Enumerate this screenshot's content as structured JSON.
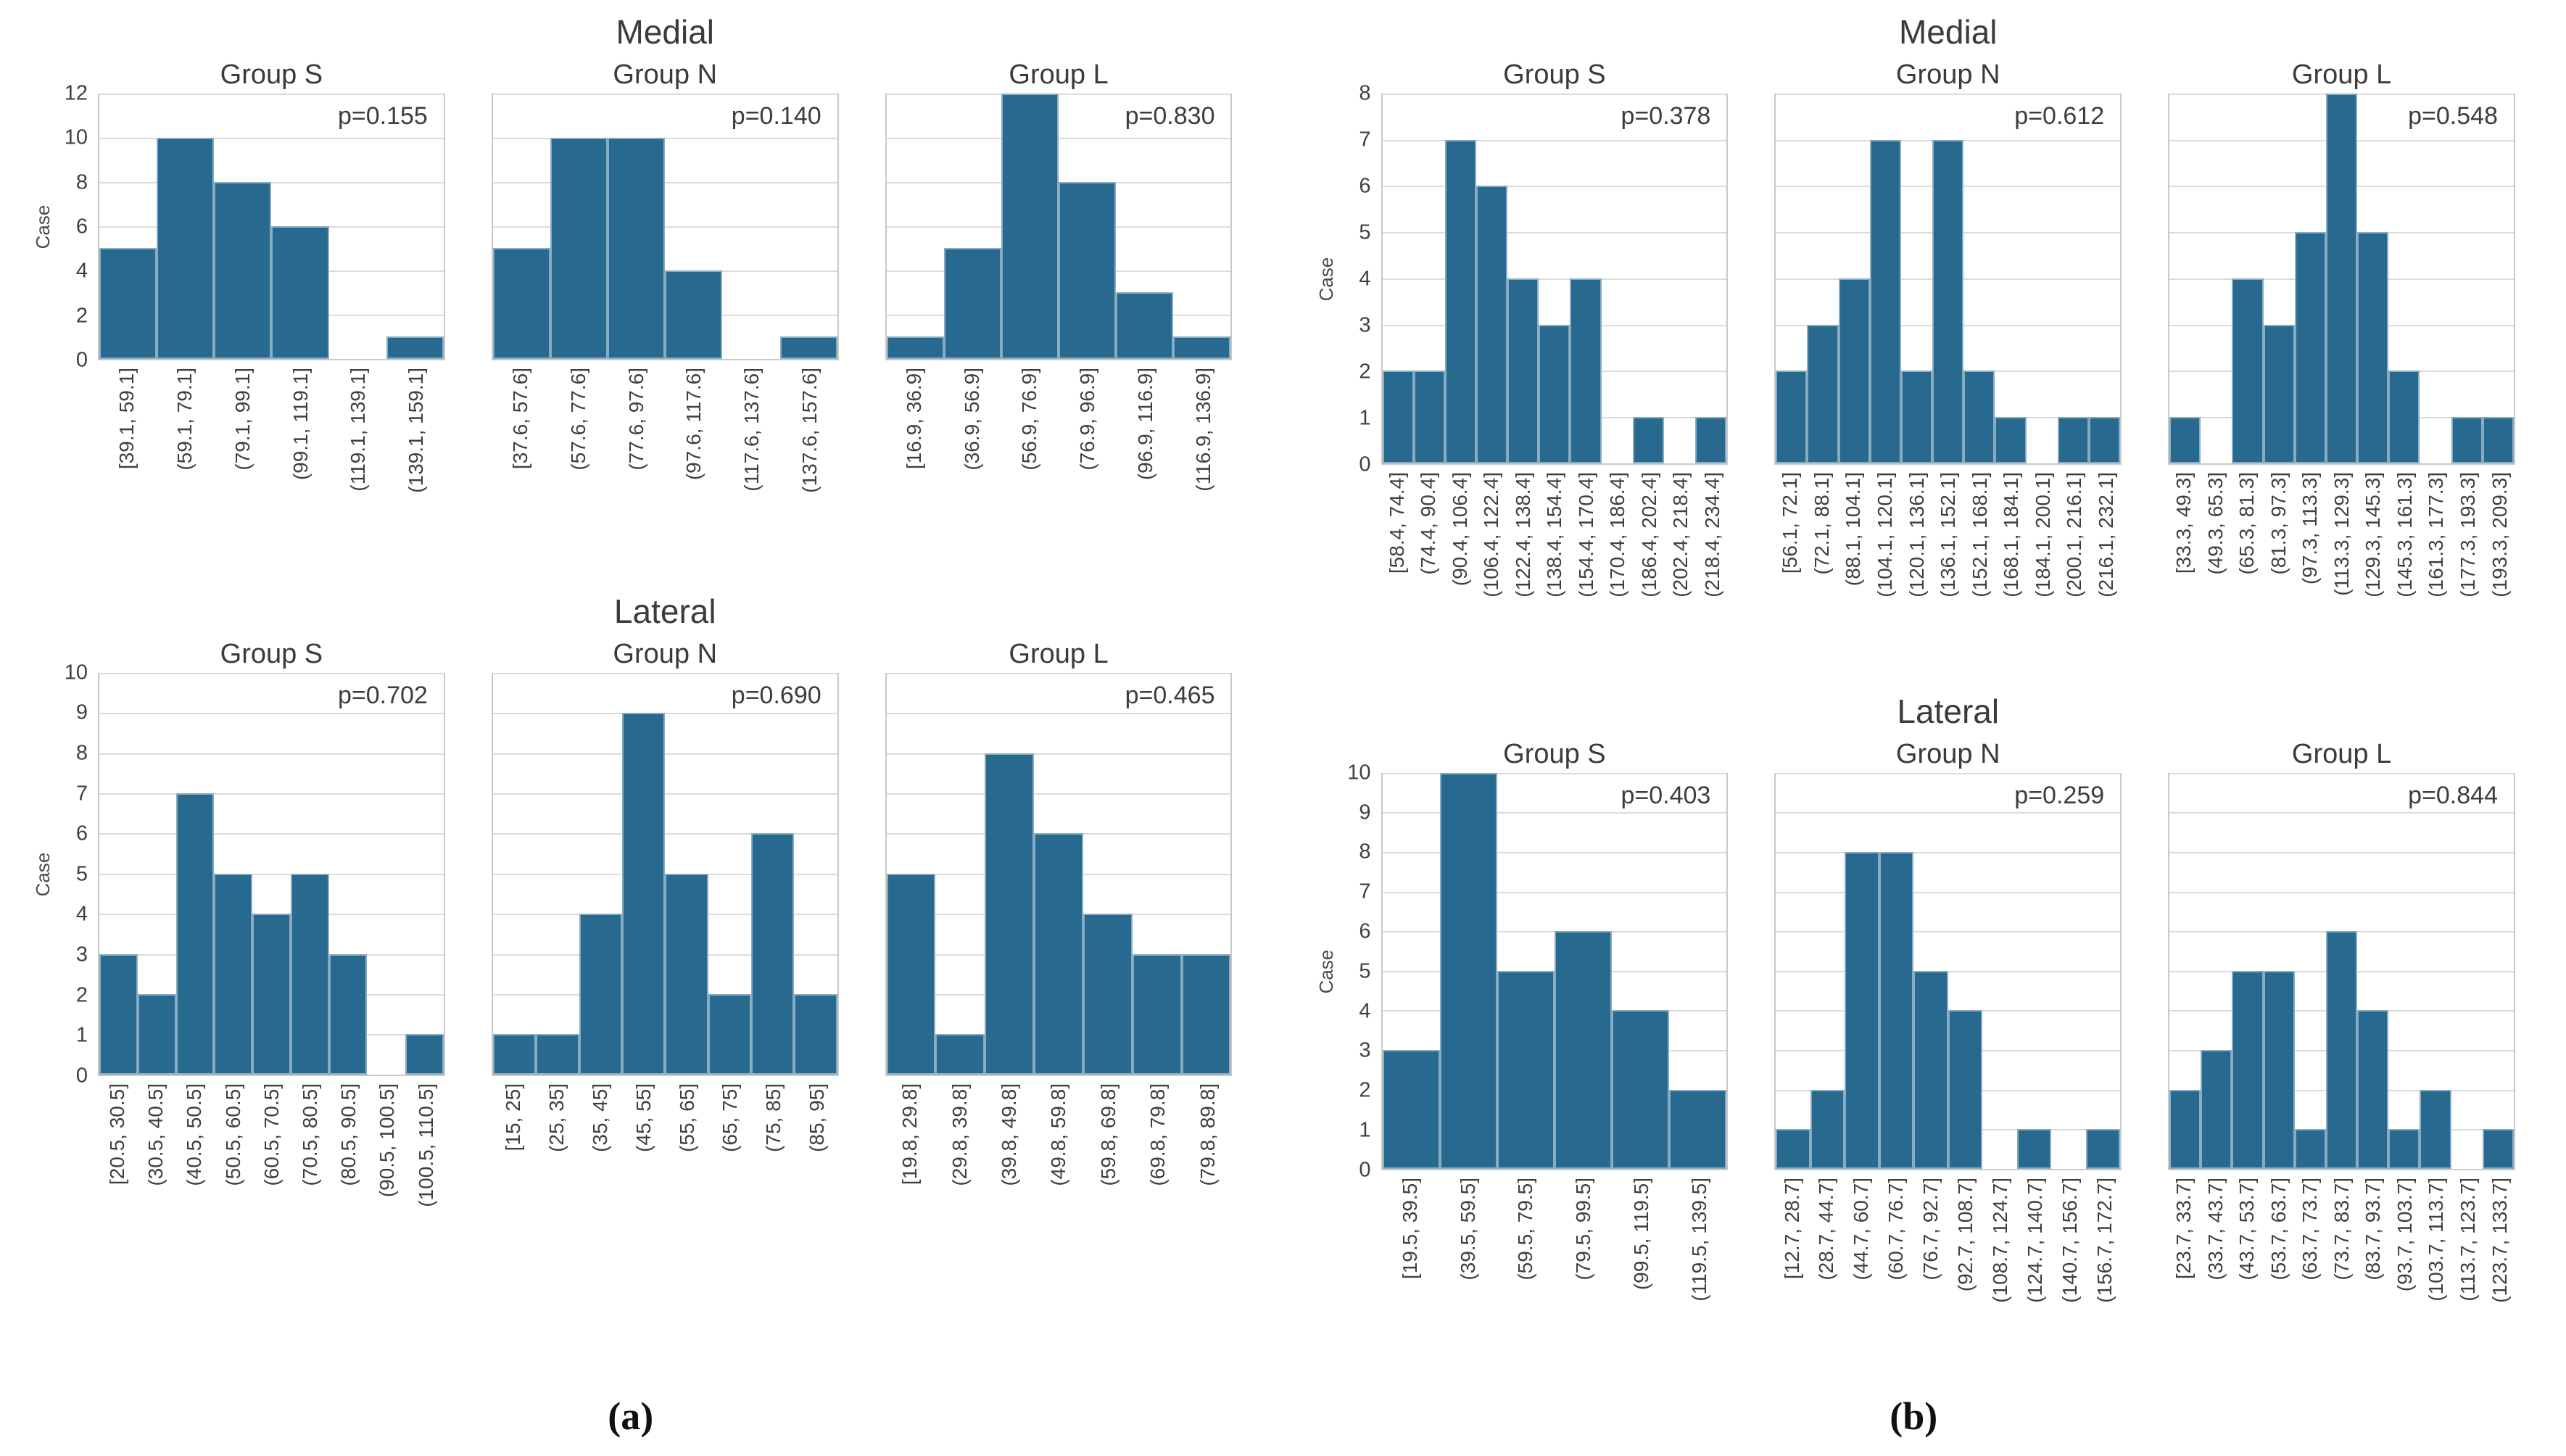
{
  "figure": {
    "panels": [
      {
        "id": "a",
        "label": "(a)"
      },
      {
        "id": "b",
        "label": "(b)"
      }
    ],
    "sections": [
      "Medial",
      "Lateral"
    ],
    "ylabel": "Case",
    "bar_color": "#27698f",
    "grid": "on",
    "legend": "none"
  },
  "chart_data": [
    {
      "type": "bar",
      "panel": "a",
      "section": "Medial",
      "title": "Group S",
      "annotation": "p=0.155",
      "ylabel": "Case",
      "xlabel": "",
      "ylim": [
        0,
        12
      ],
      "yticks": [
        0,
        2,
        4,
        6,
        8,
        10,
        12
      ],
      "categories": [
        "[39.1, 59.1]",
        "(59.1, 79.1]",
        "(79.1, 99.1]",
        "(99.1, 119.1]",
        "(119.1, 139.1]",
        "(139.1, 159.1]"
      ],
      "values": [
        5,
        10,
        8,
        6,
        0,
        1
      ]
    },
    {
      "type": "bar",
      "panel": "a",
      "section": "Medial",
      "title": "Group N",
      "annotation": "p=0.140",
      "ylabel": "Case",
      "xlabel": "",
      "ylim": [
        0,
        12
      ],
      "yticks": [
        0,
        2,
        4,
        6,
        8,
        10,
        12
      ],
      "categories": [
        "[37.6, 57.6]",
        "(57.6, 77.6]",
        "(77.6, 97.6]",
        "(97.6, 117.6]",
        "(117.6, 137.6]",
        "(137.6, 157.6]"
      ],
      "values": [
        5,
        10,
        10,
        4,
        0,
        1
      ]
    },
    {
      "type": "bar",
      "panel": "a",
      "section": "Medial",
      "title": "Group L",
      "annotation": "p=0.830",
      "ylabel": "Case",
      "xlabel": "",
      "ylim": [
        0,
        12
      ],
      "yticks": [
        0,
        2,
        4,
        6,
        8,
        10,
        12
      ],
      "categories": [
        "[16.9, 36.9]",
        "(36.9, 56.9]",
        "(56.9, 76.9]",
        "(76.9, 96.9]",
        "(96.9, 116.9]",
        "(116.9, 136.9]"
      ],
      "values": [
        1,
        5,
        12,
        8,
        3,
        1
      ]
    },
    {
      "type": "bar",
      "panel": "a",
      "section": "Lateral",
      "title": "Group S",
      "annotation": "p=0.702",
      "ylabel": "Case",
      "xlabel": "",
      "ylim": [
        0,
        10
      ],
      "yticks": [
        0,
        1,
        2,
        3,
        4,
        5,
        6,
        7,
        8,
        9,
        10
      ],
      "categories": [
        "[20.5, 30.5]",
        "(30.5, 40.5]",
        "(40.5, 50.5]",
        "(50.5, 60.5]",
        "(60.5, 70.5]",
        "(70.5, 80.5]",
        "(80.5, 90.5]",
        "(90.5, 100.5]",
        "(100.5, 110.5]"
      ],
      "values": [
        3,
        2,
        7,
        5,
        4,
        5,
        3,
        0,
        1
      ]
    },
    {
      "type": "bar",
      "panel": "a",
      "section": "Lateral",
      "title": "Group N",
      "annotation": "p=0.690",
      "ylabel": "Case",
      "xlabel": "",
      "ylim": [
        0,
        10
      ],
      "yticks": [
        0,
        1,
        2,
        3,
        4,
        5,
        6,
        7,
        8,
        9,
        10
      ],
      "categories": [
        "[15, 25]",
        "(25, 35]",
        "(35, 45]",
        "(45, 55]",
        "(55, 65]",
        "(65, 75]",
        "(75, 85]",
        "(85, 95]"
      ],
      "values": [
        1,
        1,
        4,
        9,
        5,
        2,
        6,
        2
      ]
    },
    {
      "type": "bar",
      "panel": "a",
      "section": "Lateral",
      "title": "Group L",
      "annotation": "p=0.465",
      "ylabel": "Case",
      "xlabel": "",
      "ylim": [
        0,
        10
      ],
      "yticks": [
        0,
        1,
        2,
        3,
        4,
        5,
        6,
        7,
        8,
        9,
        10
      ],
      "categories": [
        "[19.8, 29.8]",
        "(29.8, 39.8]",
        "(39.8, 49.8]",
        "(49.8, 59.8]",
        "(59.8, 69.8]",
        "(69.8, 79.8]",
        "(79.8, 89.8]"
      ],
      "values": [
        5,
        1,
        8,
        6,
        4,
        3,
        3
      ]
    },
    {
      "type": "bar",
      "panel": "b",
      "section": "Medial",
      "title": "Group S",
      "annotation": "p=0.378",
      "ylabel": "Case",
      "xlabel": "",
      "ylim": [
        0,
        8
      ],
      "yticks": [
        0,
        1,
        2,
        3,
        4,
        5,
        6,
        7,
        8
      ],
      "categories": [
        "[58.4, 74.4]",
        "(74.4, 90.4]",
        "(90.4, 106.4]",
        "(106.4, 122.4]",
        "(122.4, 138.4]",
        "(138.4, 154.4]",
        "(154.4, 170.4]",
        "(170.4, 186.4]",
        "(186.4, 202.4]",
        "(202.4, 218.4]",
        "(218.4, 234.4]"
      ],
      "values": [
        2,
        2,
        7,
        6,
        4,
        3,
        4,
        0,
        1,
        0,
        1
      ]
    },
    {
      "type": "bar",
      "panel": "b",
      "section": "Medial",
      "title": "Group N",
      "annotation": "p=0.612",
      "ylabel": "Case",
      "xlabel": "",
      "ylim": [
        0,
        8
      ],
      "yticks": [
        0,
        1,
        2,
        3,
        4,
        5,
        6,
        7,
        8
      ],
      "categories": [
        "[56.1, 72.1]",
        "(72.1, 88.1]",
        "(88.1, 104.1]",
        "(104.1, 120.1]",
        "(120.1, 136.1]",
        "(136.1, 152.1]",
        "(152.1, 168.1]",
        "(168.1, 184.1]",
        "(184.1, 200.1]",
        "(200.1, 216.1]",
        "(216.1, 232.1]"
      ],
      "values": [
        2,
        3,
        4,
        7,
        2,
        7,
        2,
        1,
        0,
        1,
        1
      ]
    },
    {
      "type": "bar",
      "panel": "b",
      "section": "Medial",
      "title": "Group L",
      "annotation": "p=0.548",
      "ylabel": "Case",
      "xlabel": "",
      "ylim": [
        0,
        8
      ],
      "yticks": [
        0,
        1,
        2,
        3,
        4,
        5,
        6,
        7,
        8
      ],
      "categories": [
        "[33.3, 49.3]",
        "(49.3, 65.3]",
        "(65.3, 81.3]",
        "(81.3, 97.3]",
        "(97.3, 113.3]",
        "(113.3, 129.3]",
        "(129.3, 145.3]",
        "(145.3, 161.3]",
        "(161.3, 177.3]",
        "(177.3, 193.3]",
        "(193.3, 209.3]"
      ],
      "values": [
        1,
        0,
        4,
        3,
        5,
        8,
        5,
        2,
        0,
        1,
        1
      ]
    },
    {
      "type": "bar",
      "panel": "b",
      "section": "Lateral",
      "title": "Group S",
      "annotation": "p=0.403",
      "ylabel": "Case",
      "xlabel": "",
      "ylim": [
        0,
        10
      ],
      "yticks": [
        0,
        1,
        2,
        3,
        4,
        5,
        6,
        7,
        8,
        9,
        10
      ],
      "categories": [
        "[19.5, 39.5]",
        "(39.5, 59.5]",
        "(59.5, 79.5]",
        "(79.5, 99.5]",
        "(99.5, 119.5]",
        "(119.5, 139.5]"
      ],
      "values": [
        3,
        10,
        5,
        6,
        4,
        2
      ]
    },
    {
      "type": "bar",
      "panel": "b",
      "section": "Lateral",
      "title": "Group N",
      "annotation": "p=0.259",
      "ylabel": "Case",
      "xlabel": "",
      "ylim": [
        0,
        10
      ],
      "yticks": [
        0,
        1,
        2,
        3,
        4,
        5,
        6,
        7,
        8,
        9,
        10
      ],
      "categories": [
        "[12.7, 28.7]",
        "(28.7, 44.7]",
        "(44.7, 60.7]",
        "(60.7, 76.7]",
        "(76.7, 92.7]",
        "(92.7, 108.7]",
        "(108.7, 124.7]",
        "(124.7, 140.7]",
        "(140.7, 156.7]",
        "(156.7, 172.7]"
      ],
      "values": [
        1,
        2,
        8,
        8,
        5,
        4,
        0,
        1,
        0,
        1
      ]
    },
    {
      "type": "bar",
      "panel": "b",
      "section": "Lateral",
      "title": "Group L",
      "annotation": "p=0.844",
      "ylabel": "Case",
      "xlabel": "",
      "ylim": [
        0,
        10
      ],
      "yticks": [
        0,
        1,
        2,
        3,
        4,
        5,
        6,
        7,
        8,
        9,
        10
      ],
      "categories": [
        "[23.7, 33.7]",
        "(33.7, 43.7]",
        "(43.7, 53.7]",
        "(53.7, 63.7]",
        "(63.7, 73.7]",
        "(73.7, 83.7]",
        "(83.7, 93.7]",
        "(93.7, 103.7]",
        "(103.7, 113.7]",
        "(113.7, 123.7]",
        "(123.7, 133.7]"
      ],
      "values": [
        2,
        3,
        5,
        5,
        1,
        6,
        4,
        1,
        2,
        0,
        1
      ]
    }
  ]
}
